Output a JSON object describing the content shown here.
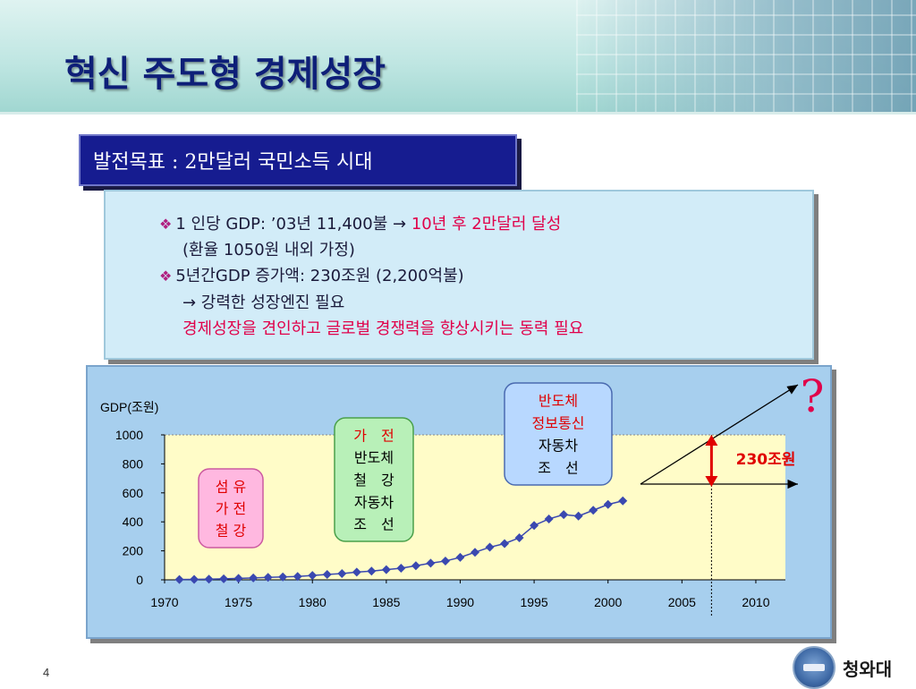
{
  "title": "혁신 주도형 경제성장",
  "goal": "발전목표 : 2만달러 국민소득 시대",
  "info": {
    "line1_prefix": "1 인당 GDP: ’03년 11,400불",
    "line1_arrow": "→",
    "line1_red": "10년 후 2만달러 달성",
    "line2": "(환율 1050원 내외 가정)",
    "line3": "5년간GDP 증가액: 230조원 (2,200억불)",
    "line4": "→ 강력한 성장엔진 필요",
    "line5_red": "경제성장을 견인하고 글로벌 경쟁력을 향상시키는 동력 필요"
  },
  "colors": {
    "title": "#0e1f78",
    "goal_box": "#161c90",
    "accent_red": "#e0004a",
    "series": "#3a48b0",
    "plot_bg": "#fffcc8"
  },
  "chart_data": {
    "type": "line",
    "ylabel": "GDP(조원)",
    "xlim": [
      1970,
      2012
    ],
    "ylim": [
      0,
      1000
    ],
    "x_ticks": [
      1970,
      1975,
      1980,
      1985,
      1990,
      1995,
      2000,
      2005,
      2010
    ],
    "y_ticks": [
      0,
      200,
      400,
      600,
      800,
      1000
    ],
    "series": [
      {
        "marker": "diamond",
        "x": [
          1971,
          1972,
          1973,
          1974,
          1975,
          1976,
          1977,
          1978,
          1979,
          1980,
          1981,
          1982,
          1983,
          1984,
          1985,
          1986,
          1987,
          1988,
          1989,
          1990,
          1991,
          1992,
          1993,
          1994,
          1995,
          1996,
          1997,
          1998,
          1999,
          2000,
          2001
        ],
        "y": [
          2,
          3,
          5,
          7,
          10,
          13,
          17,
          20,
          23,
          30,
          37,
          43,
          53,
          60,
          70,
          80,
          97,
          115,
          130,
          155,
          190,
          225,
          250,
          290,
          375,
          420,
          450,
          440,
          480,
          520,
          545
        ]
      }
    ],
    "reference_line_x": 2007,
    "annotations": {
      "era1": [
        "섬 유",
        "가 전",
        "철 강"
      ],
      "era2": [
        "가　전",
        "반도체",
        "철　강",
        "자동차",
        "조　선"
      ],
      "era3": [
        "반도체",
        "정보통신",
        "자동차",
        "조　선"
      ],
      "gap_label": "230조원",
      "question_mark": "?"
    }
  },
  "page_number": "4",
  "logo": {
    "text": "청와대",
    "icon": "blue-house-emblem-icon"
  }
}
